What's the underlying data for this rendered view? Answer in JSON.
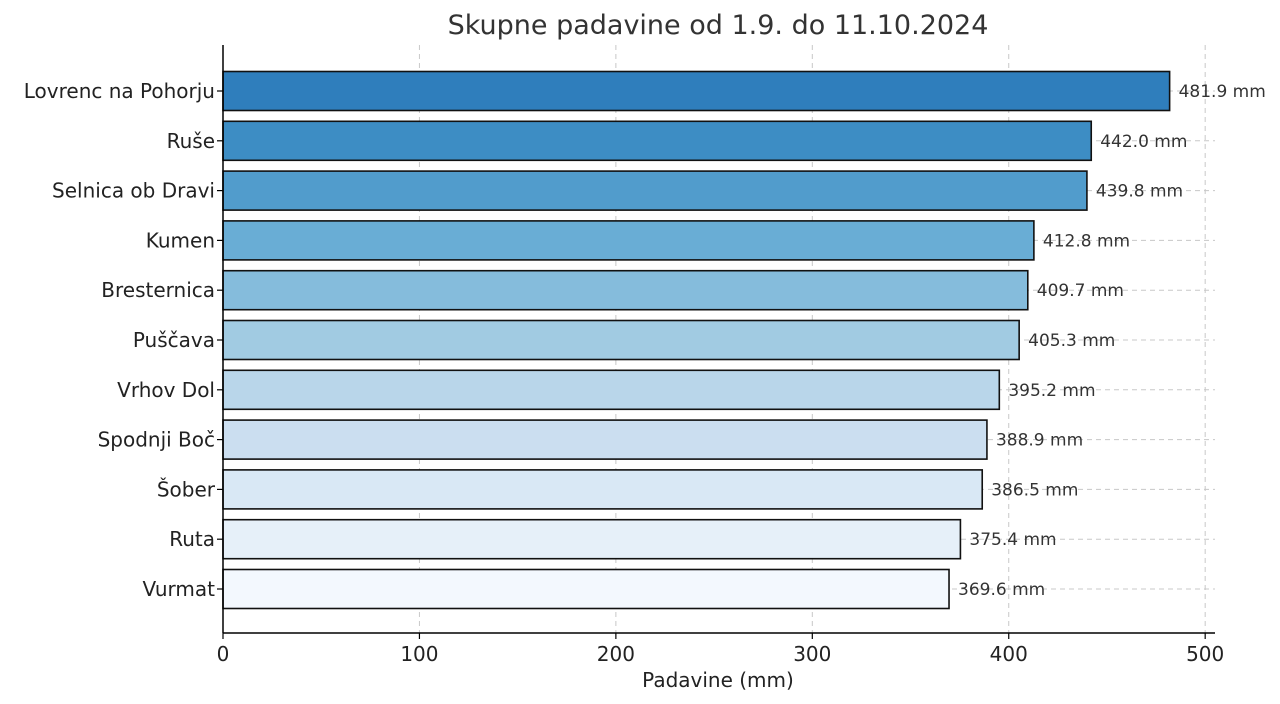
{
  "chart_data": {
    "type": "bar",
    "orientation": "horizontal",
    "title": "Skupne padavine od 1.9. do 11.10.2024",
    "xlabel": "Padavine (mm)",
    "ylabel": "",
    "xlim": [
      0,
      505
    ],
    "xticks": [
      0,
      100,
      200,
      300,
      400,
      500
    ],
    "grid": true,
    "value_suffix": " mm",
    "categories": [
      "Lovrenc na Pohorju",
      "Ruše",
      "Selnica ob Dravi",
      "Kumen",
      "Bresternica",
      "Puščava",
      "Vrhov Dol",
      "Spodnji Boč",
      "Šober",
      "Ruta",
      "Vurmat"
    ],
    "values": [
      481.9,
      442.0,
      439.8,
      412.8,
      409.7,
      405.3,
      395.2,
      388.9,
      386.5,
      375.4,
      369.6
    ],
    "value_labels": [
      "481.9 mm",
      "442.0 mm",
      "439.8 mm",
      "412.8 mm",
      "409.7 mm",
      "405.3 mm",
      "395.2 mm",
      "388.9 mm",
      "386.5 mm",
      "375.4 mm",
      "369.6 mm"
    ],
    "colors": [
      "#2f7ebc",
      "#3d8dc4",
      "#519ccc",
      "#69add5",
      "#85bcdc",
      "#a1cbe2",
      "#b9d6ea",
      "#cbdef0",
      "#d9e8f5",
      "#e6f0f9",
      "#f3f8fe"
    ]
  }
}
